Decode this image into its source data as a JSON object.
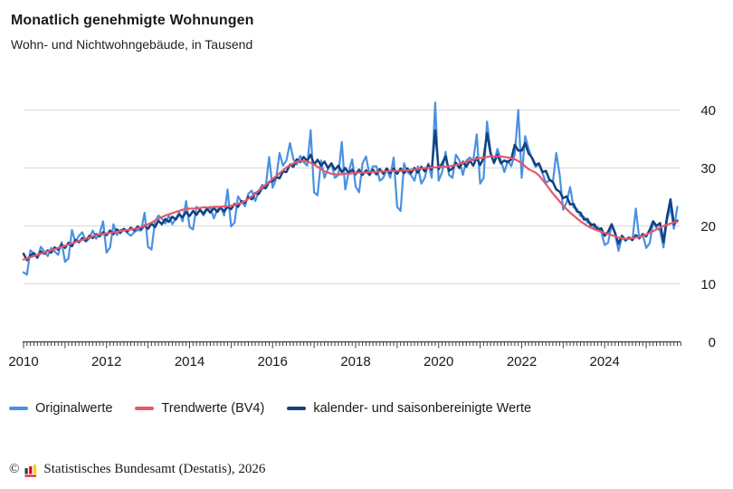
{
  "header": {
    "title": "Monatlich genehmigte Wohnungen",
    "subtitle": "Wohn- und Nichtwohngebäude, in Tausend"
  },
  "footer": {
    "copyright_symbol": "©",
    "logo_icon": "destatis-bar-chart-icon",
    "logo_colors": [
      "#3a3a39",
      "#e2001a",
      "#ffcc00"
    ],
    "source": "Statistisches Bundesamt (Destatis), 2026"
  },
  "chart_data": {
    "type": "line",
    "title": "Monatlich genehmigte Wohnungen",
    "subtitle": "Wohn- und Nichtwohngebäude, in Tausend",
    "unit": "Tausend",
    "frequency": "monthly",
    "x_base": 2010,
    "x_start": "2010-01",
    "x_end": "2025-10",
    "xticks": [
      2010,
      2012,
      2014,
      2016,
      2018,
      2020,
      2022,
      2024
    ],
    "yticks": [
      0,
      10,
      20,
      30,
      40
    ],
    "ylim": [
      0,
      43
    ],
    "y_axis_side": "right",
    "grid": "horizontal",
    "legend_position": "bottom-left",
    "colors": {
      "grid": "#d9d9d9",
      "axis": "#3d3d3d",
      "text": "#191919"
    },
    "series": [
      {
        "name": "Originalwerte",
        "color": "#4a91e2",
        "values": [
          12.0,
          11.6,
          15.8,
          15.2,
          14.4,
          16.4,
          15.6,
          14.8,
          16.2,
          15.6,
          15.0,
          17.2,
          13.8,
          14.4,
          19.3,
          17.2,
          18.3,
          18.9,
          17.3,
          17.8,
          19.2,
          17.8,
          18.7,
          20.8,
          15.4,
          16.3,
          20.3,
          18.4,
          19.3,
          19.4,
          18.8,
          18.3,
          18.9,
          19.3,
          19.2,
          22.3,
          16.4,
          15.9,
          20.8,
          21.8,
          21.3,
          20.4,
          21.8,
          20.3,
          21.3,
          22.3,
          20.8,
          24.3,
          19.8,
          19.4,
          23.3,
          22.8,
          21.8,
          22.8,
          23.3,
          21.3,
          22.8,
          23.3,
          21.8,
          26.3,
          19.9,
          20.6,
          25.1,
          24.2,
          23.4,
          25.6,
          26.1,
          24.3,
          26.0,
          27.1,
          26.7,
          31.9,
          26.6,
          28.1,
          32.6,
          30.4,
          31.3,
          34.3,
          31.5,
          30.6,
          32.1,
          31.0,
          30.4,
          36.5,
          25.8,
          25.3,
          31.3,
          28.3,
          29.8,
          30.8,
          28.3,
          28.8,
          34.5,
          26.3,
          29.3,
          31.5,
          26.8,
          25.8,
          30.8,
          32.0,
          28.8,
          30.3,
          30.3,
          27.8,
          28.3,
          29.8,
          28.3,
          31.8,
          23.3,
          22.6,
          30.8,
          29.3,
          28.8,
          27.8,
          30.3,
          27.3,
          28.3,
          30.8,
          28.3,
          41.3,
          27.8,
          29.3,
          32.8,
          28.8,
          28.3,
          32.3,
          31.3,
          28.8,
          31.3,
          31.8,
          31.3,
          35.8,
          27.3,
          28.3,
          38.0,
          32.8,
          30.8,
          33.3,
          31.3,
          29.3,
          31.3,
          30.3,
          32.3,
          40.0,
          28.3,
          35.5,
          33.3,
          31.6,
          30.2,
          30.6,
          29.2,
          27.4,
          27.9,
          27.5,
          32.6,
          28.8,
          22.8,
          24.1,
          26.7,
          23.2,
          22.9,
          21.7,
          21.6,
          20.6,
          20.5,
          19.7,
          19.8,
          19.0,
          16.7,
          17.1,
          20.2,
          18.6,
          15.7,
          18.1,
          17.4,
          17.9,
          17.5,
          23.0,
          17.8,
          18.5,
          16.2,
          17.0,
          20.6,
          19.6,
          19.2,
          16.3,
          20.9,
          23.2,
          19.5,
          23.3
        ]
      },
      {
        "name": "Trendwerte (BV4)",
        "color": "#e8576b",
        "values": [
          14.2,
          14.4,
          14.6,
          14.8,
          15.0,
          15.2,
          15.4,
          15.6,
          15.8,
          16.0,
          16.2,
          16.4,
          16.6,
          16.8,
          17.0,
          17.2,
          17.4,
          17.6,
          17.8,
          18.0,
          18.2,
          18.4,
          18.5,
          18.6,
          18.7,
          18.8,
          18.9,
          19.0,
          19.1,
          19.2,
          19.3,
          19.4,
          19.5,
          19.6,
          19.8,
          20.0,
          20.3,
          20.6,
          20.9,
          21.2,
          21.5,
          21.8,
          22.0,
          22.2,
          22.4,
          22.6,
          22.8,
          22.9,
          23.0,
          23.0,
          23.1,
          23.1,
          23.2,
          23.2,
          23.2,
          23.3,
          23.3,
          23.3,
          23.4,
          23.4,
          23.5,
          23.6,
          23.8,
          24.0,
          24.3,
          24.7,
          25.1,
          25.6,
          26.1,
          26.6,
          27.1,
          27.6,
          28.1,
          28.6,
          29.1,
          29.6,
          30.1,
          30.5,
          30.8,
          31.1,
          31.2,
          31.2,
          31.1,
          30.9,
          30.6,
          30.2,
          29.8,
          29.4,
          29.2,
          29.0,
          28.9,
          28.9,
          28.9,
          29.0,
          29.0,
          29.1,
          29.1,
          29.2,
          29.2,
          29.2,
          29.3,
          29.3,
          29.3,
          29.4,
          29.4,
          29.4,
          29.5,
          29.5,
          29.5,
          29.5,
          29.6,
          29.6,
          29.7,
          29.7,
          29.8,
          29.9,
          30.0,
          30.0,
          30.1,
          30.1,
          30.2,
          30.2,
          30.2,
          30.3,
          30.4,
          30.5,
          30.7,
          30.9,
          31.1,
          31.3,
          31.5,
          31.6,
          31.7,
          31.8,
          31.9,
          32.0,
          32.0,
          32.0,
          32.0,
          31.9,
          31.8,
          31.7,
          31.5,
          31.2,
          30.8,
          30.3,
          29.8,
          29.5,
          29.2,
          28.7,
          28.0,
          27.2,
          26.4,
          25.6,
          24.9,
          24.2,
          23.5,
          22.9,
          22.3,
          21.8,
          21.3,
          20.8,
          20.4,
          20.0,
          19.7,
          19.4,
          19.2,
          19.0,
          18.8,
          18.6,
          18.4,
          18.2,
          18.0,
          17.9,
          17.8,
          17.8,
          17.9,
          18.0,
          18.1,
          18.3,
          18.5,
          18.8,
          19.1,
          19.4,
          19.7,
          20.0,
          20.2,
          20.4,
          20.6,
          20.7
        ]
      },
      {
        "name": "kalender- und saisonbereinigte Werte",
        "color": "#14427e",
        "values": [
          15.2,
          14.1,
          14.9,
          15.3,
          14.6,
          15.6,
          15.2,
          15.8,
          15.4,
          16.3,
          15.9,
          16.8,
          16.2,
          17.1,
          16.5,
          17.6,
          17.2,
          17.9,
          17.4,
          18.3,
          17.9,
          18.6,
          18.2,
          18.9,
          18.4,
          19.2,
          18.6,
          19.4,
          18.8,
          19.5,
          19.0,
          19.7,
          19.2,
          19.9,
          19.4,
          20.1,
          19.5,
          20.4,
          19.8,
          20.9,
          20.3,
          21.2,
          20.7,
          21.6,
          21.1,
          22.0,
          21.5,
          22.4,
          21.7,
          22.6,
          21.9,
          22.8,
          22.1,
          23.0,
          22.3,
          23.1,
          22.4,
          23.2,
          22.5,
          23.3,
          22.9,
          23.8,
          23.3,
          24.3,
          24.0,
          25.0,
          24.6,
          25.7,
          25.5,
          26.6,
          26.5,
          27.6,
          27.7,
          28.5,
          28.2,
          29.4,
          29.3,
          30.6,
          30.2,
          31.5,
          31.0,
          31.9,
          31.2,
          32.3,
          30.6,
          31.4,
          30.4,
          31.1,
          30.0,
          30.8,
          29.7,
          30.4,
          29.3,
          30.0,
          29.1,
          29.7,
          28.9,
          29.7,
          28.8,
          29.6,
          28.8,
          29.7,
          28.9,
          29.8,
          29.0,
          29.9,
          29.1,
          29.9,
          29.0,
          29.9,
          29.1,
          29.9,
          29.1,
          30.0,
          29.2,
          30.2,
          29.4,
          30.5,
          29.7,
          36.5,
          29.8,
          30.8,
          32.0,
          29.5,
          29.9,
          30.9,
          30.0,
          31.1,
          30.2,
          31.3,
          30.4,
          31.8,
          30.5,
          31.7,
          36.0,
          32.5,
          30.9,
          32.3,
          30.8,
          31.3,
          31.0,
          31.5,
          34.0,
          33.0,
          33.0,
          34.3,
          32.5,
          31.8,
          30.5,
          30.8,
          29.3,
          29.5,
          28.0,
          27.6,
          26.3,
          25.9,
          24.8,
          25.1,
          23.7,
          23.8,
          22.5,
          22.3,
          21.1,
          21.2,
          20.1,
          20.3,
          19.3,
          19.6,
          18.3,
          19.0,
          20.3,
          18.8,
          16.9,
          18.3,
          17.6,
          18.0,
          17.6,
          18.4,
          17.9,
          18.6,
          18.2,
          19.3,
          20.8,
          20.0,
          20.5,
          17.2,
          21.5,
          24.6,
          20.3,
          20.9
        ]
      }
    ]
  }
}
